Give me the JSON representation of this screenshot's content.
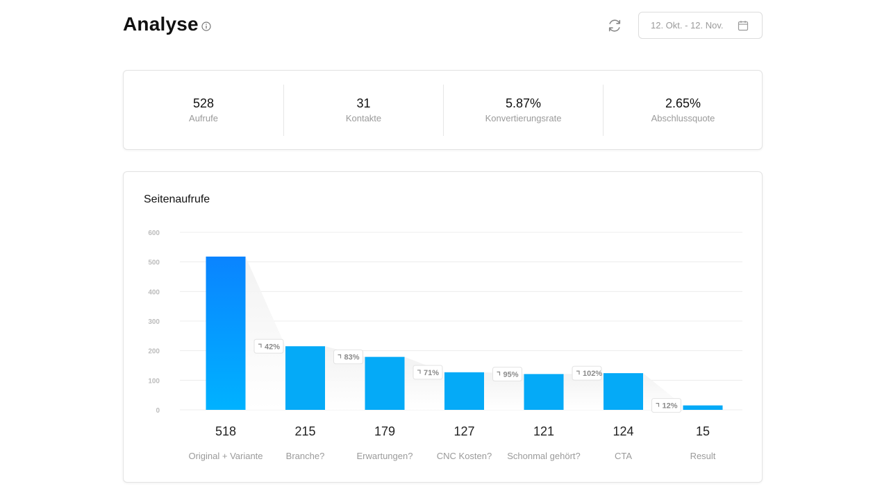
{
  "header": {
    "title": "Analyse",
    "info_icon": "info-icon",
    "refresh_icon": "refresh-icon",
    "date_range": "12. Okt. - 12. Nov.",
    "calendar_icon": "calendar-icon"
  },
  "kpis": [
    {
      "value": "528",
      "label": "Aufrufe"
    },
    {
      "value": "31",
      "label": "Kontakte"
    },
    {
      "value": "5.87%",
      "label": "Konvertierungsrate"
    },
    {
      "value": "2.65%",
      "label": "Abschlussquote"
    }
  ],
  "chart_card": {
    "title": "Seitenaufrufe"
  },
  "colors": {
    "bar_top": "#0a84ff",
    "bar_bottom": "#00b2ff",
    "bar_default": "#05aaf7"
  },
  "chart_data": {
    "type": "bar",
    "title": "Seitenaufrufe",
    "categories": [
      "Original + Variante",
      "Branche?",
      "Erwartungen?",
      "CNC Kosten?",
      "Schonmal gehört?",
      "CTA",
      "Result"
    ],
    "values": [
      518,
      215,
      179,
      127,
      121,
      124,
      15
    ],
    "value_labels": [
      "518",
      "215",
      "179",
      "127",
      "121",
      "124",
      "15"
    ],
    "conversion_labels": [
      "42%",
      "83%",
      "71%",
      "95%",
      "102%",
      "12%"
    ],
    "yticks": [
      0,
      100,
      200,
      300,
      400,
      500,
      600
    ],
    "ytick_labels": [
      "0",
      "100",
      "200",
      "300",
      "400",
      "500",
      "600"
    ],
    "ylim": [
      0,
      600
    ],
    "grid": true,
    "legend": "none",
    "xlabel": "",
    "ylabel": ""
  }
}
